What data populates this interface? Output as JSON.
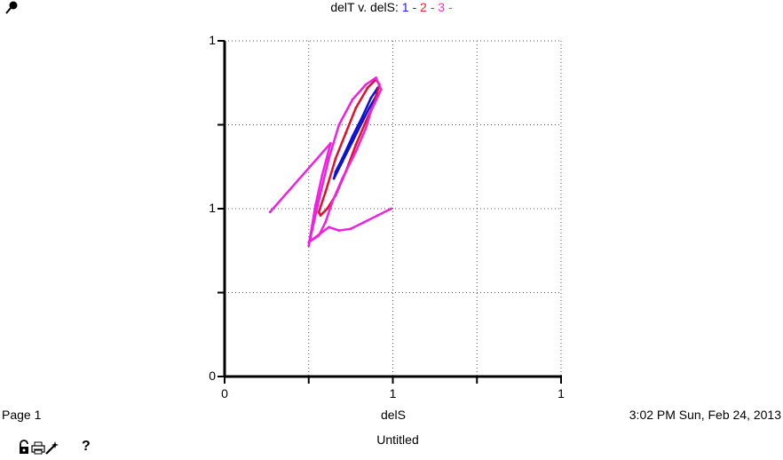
{
  "title": {
    "prefix": "delT v. delS:",
    "series_labels": [
      {
        "text": "1",
        "sep": "-",
        "color": "#1a1aff"
      },
      {
        "text": "2",
        "sep": "-",
        "color": "#ff1a3a"
      },
      {
        "text": "3",
        "sep": "-",
        "color": "#ff2ad8"
      }
    ]
  },
  "footer": {
    "page_label": "Page 1",
    "timestamp": "3:02 PM   Sun, Feb 24, 2013",
    "doc_title": "Untitled",
    "help_label": "?"
  },
  "icons": {
    "top_left": "pin-icon",
    "toolbar": [
      "lock-icon",
      "print-icon",
      "wand-icon"
    ]
  },
  "chart_data": {
    "type": "line",
    "title": "delT v. delS:",
    "xlabel": "delS",
    "ylabel": "",
    "xlim": [
      0,
      2
    ],
    "ylim": [
      0,
      2
    ],
    "x_tick_labels": [
      "0",
      "",
      "1",
      "",
      "1"
    ],
    "y_tick_labels": [
      "0",
      "",
      "1",
      "",
      "1"
    ],
    "grid": true,
    "series": [
      {
        "name": "1",
        "color": "#1010d0",
        "x": [
          0.65,
          0.7,
          0.76,
          0.82,
          0.86,
          0.9,
          0.91,
          0.87,
          0.82,
          0.76,
          0.7,
          0.66,
          0.65
        ],
        "y": [
          1.18,
          1.28,
          1.4,
          1.52,
          1.6,
          1.67,
          1.72,
          1.66,
          1.55,
          1.43,
          1.3,
          1.22,
          1.18
        ]
      },
      {
        "name": "2",
        "color": "#e0102a",
        "x": [
          0.56,
          0.6,
          0.66,
          0.72,
          0.78,
          0.85,
          0.9,
          0.92,
          0.89,
          0.84,
          0.78,
          0.72,
          0.66,
          0.61,
          0.57,
          0.56
        ],
        "y": [
          0.98,
          1.1,
          1.3,
          1.45,
          1.6,
          1.72,
          1.77,
          1.74,
          1.63,
          1.52,
          1.38,
          1.22,
          1.08,
          1.0,
          0.96,
          0.98
        ]
      },
      {
        "name": "3",
        "color": "#f020e0",
        "x": [
          0.27,
          0.63,
          0.58,
          0.54,
          0.5,
          0.56,
          0.62,
          0.68,
          0.76,
          0.84,
          0.9,
          0.93,
          0.87,
          0.84,
          0.78,
          0.7,
          0.64,
          0.6,
          0.56,
          0.5,
          0.62,
          0.68,
          0.75,
          0.83,
          0.91,
          0.99
        ],
        "y": [
          0.98,
          1.39,
          1.2,
          1.02,
          0.78,
          1.05,
          1.3,
          1.5,
          1.65,
          1.74,
          1.78,
          1.71,
          1.58,
          1.48,
          1.34,
          1.18,
          1.04,
          0.92,
          0.84,
          0.8,
          0.89,
          0.87,
          0.88,
          0.92,
          0.96,
          1.0
        ]
      }
    ]
  }
}
